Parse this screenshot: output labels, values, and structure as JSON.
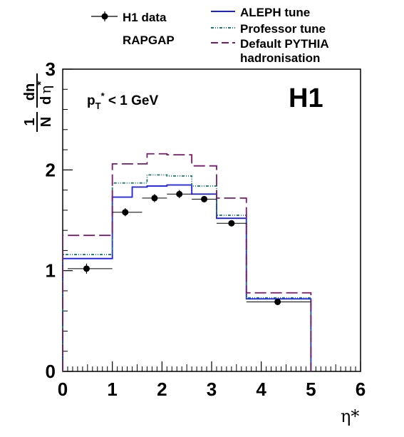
{
  "chart_data": {
    "type": "line",
    "title": "H1",
    "annotation": {
      "base": "p",
      "sub": "T",
      "sup": "*",
      "rest": " < 1 GeV"
    },
    "generator": "RAPGAP",
    "xlabel": "η*",
    "ylabel": {
      "num": "1",
      "den": "N",
      "frac_num": "dn",
      "frac_den_d": "d",
      "frac_den_var": "η",
      "frac_den_sup": "*"
    },
    "xlim": [
      0,
      6
    ],
    "ylim": [
      0,
      3
    ],
    "xticks": [
      0,
      1,
      2,
      3,
      4,
      5,
      6
    ],
    "yticks": [
      0,
      1,
      2,
      3
    ],
    "grid": false,
    "legend_position": "top",
    "bin_edges": [
      0,
      0.1,
      1,
      1.4,
      1.7,
      2.1,
      2.6,
      3.1,
      3.7,
      5
    ],
    "series": [
      {
        "name": "H1 data",
        "kind": "points",
        "color": "#000000",
        "points": [
          {
            "x": 0.48,
            "y": 1.02,
            "xlo": 0.1,
            "xhi": 1.0,
            "err": 0.05
          },
          {
            "x": 1.26,
            "y": 1.58,
            "xlo": 1.0,
            "xhi": 1.6,
            "err": 0.04
          },
          {
            "x": 1.85,
            "y": 1.72,
            "xlo": 1.6,
            "xhi": 2.1,
            "err": 0.04
          },
          {
            "x": 2.35,
            "y": 1.76,
            "xlo": 2.1,
            "xhi": 2.6,
            "err": 0.04
          },
          {
            "x": 2.85,
            "y": 1.71,
            "xlo": 2.6,
            "xhi": 3.1,
            "err": 0.03
          },
          {
            "x": 3.4,
            "y": 1.47,
            "xlo": 3.1,
            "xhi": 3.7,
            "err": 0.03
          },
          {
            "x": 4.33,
            "y": 0.69,
            "xlo": 3.7,
            "xhi": 5.0,
            "err": 0.02
          }
        ]
      },
      {
        "name": "ALEPH tune",
        "kind": "hist",
        "color": "#1a1aff",
        "dash": "",
        "values": [
          1.12,
          1.12,
          1.73,
          1.83,
          1.84,
          1.85,
          1.76,
          1.52,
          0.72
        ]
      },
      {
        "name": "Professor tune",
        "kind": "hist",
        "color": "#1e7a6e",
        "dash": "4,2,1,2,1,2",
        "values": [
          1.16,
          1.16,
          1.87,
          1.87,
          1.95,
          1.94,
          1.84,
          1.55,
          0.73
        ]
      },
      {
        "name": "Default PYTHIA",
        "name_line2": "hadronisation",
        "kind": "hist",
        "color": "#7a1a6e",
        "dash": "16,6",
        "values": [
          1.35,
          1.35,
          2.06,
          2.06,
          2.16,
          2.15,
          2.04,
          1.72,
          0.78
        ]
      }
    ]
  }
}
